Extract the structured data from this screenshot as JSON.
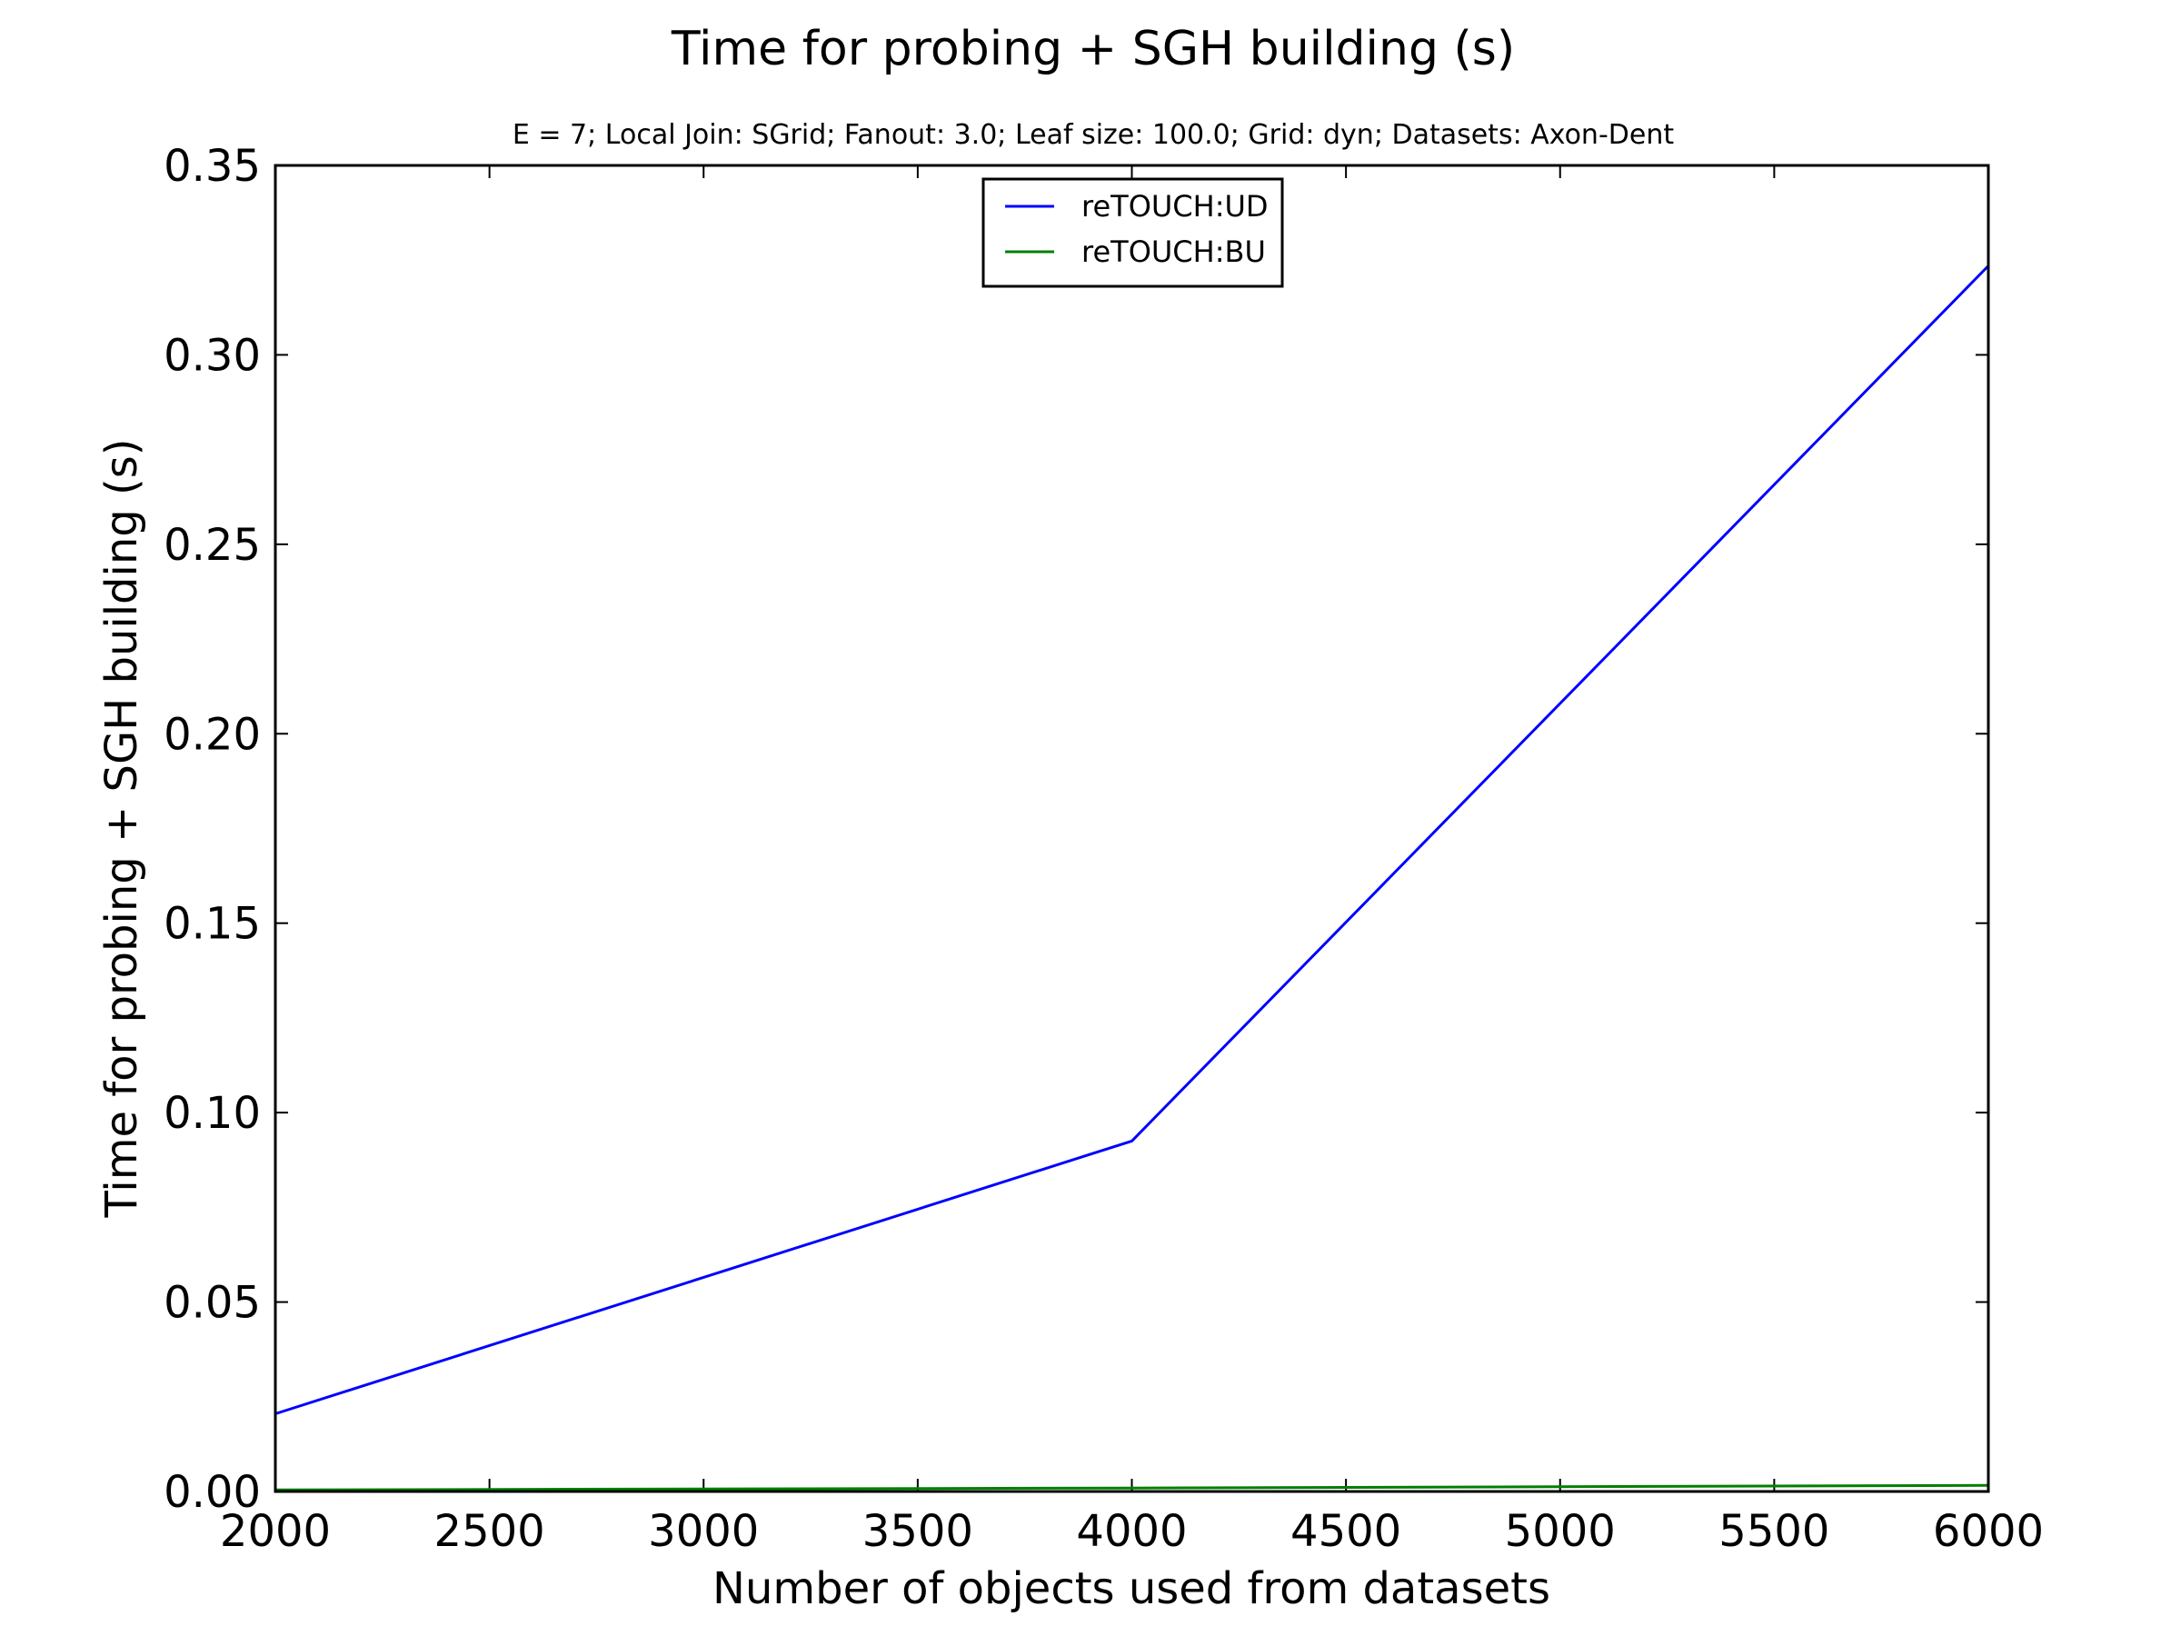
{
  "chart_data": {
    "type": "line",
    "title": "Time for probing + SGH building (s)",
    "subtitle": "E = 7; Local Join: SGrid; Fanout: 3.0; Leaf size: 100.0; Grid: dyn; Datasets: Axon-Dent",
    "xlabel": "Number of objects used from datasets",
    "ylabel": "Time for probing + SGH building (s)",
    "xlim": [
      2000,
      6000
    ],
    "ylim": [
      0,
      0.35
    ],
    "xticks": [
      "2000",
      "2500",
      "3000",
      "3500",
      "4000",
      "4500",
      "5000",
      "5500",
      "6000"
    ],
    "yticks": [
      "0.00",
      "0.05",
      "0.10",
      "0.15",
      "0.20",
      "0.25",
      "0.30",
      "0.35"
    ],
    "grid": false,
    "legend_position": "top-center",
    "series": [
      {
        "name": "reTOUCH:UD",
        "color": "#0000ff",
        "x": [
          2000,
          4000,
          6000
        ],
        "y": [
          0.0205,
          0.0925,
          0.3235
        ]
      },
      {
        "name": "reTOUCH:BU",
        "color": "#008000",
        "x": [
          2000,
          4000,
          6000
        ],
        "y": [
          0.0004,
          0.0009,
          0.0016
        ]
      }
    ]
  }
}
